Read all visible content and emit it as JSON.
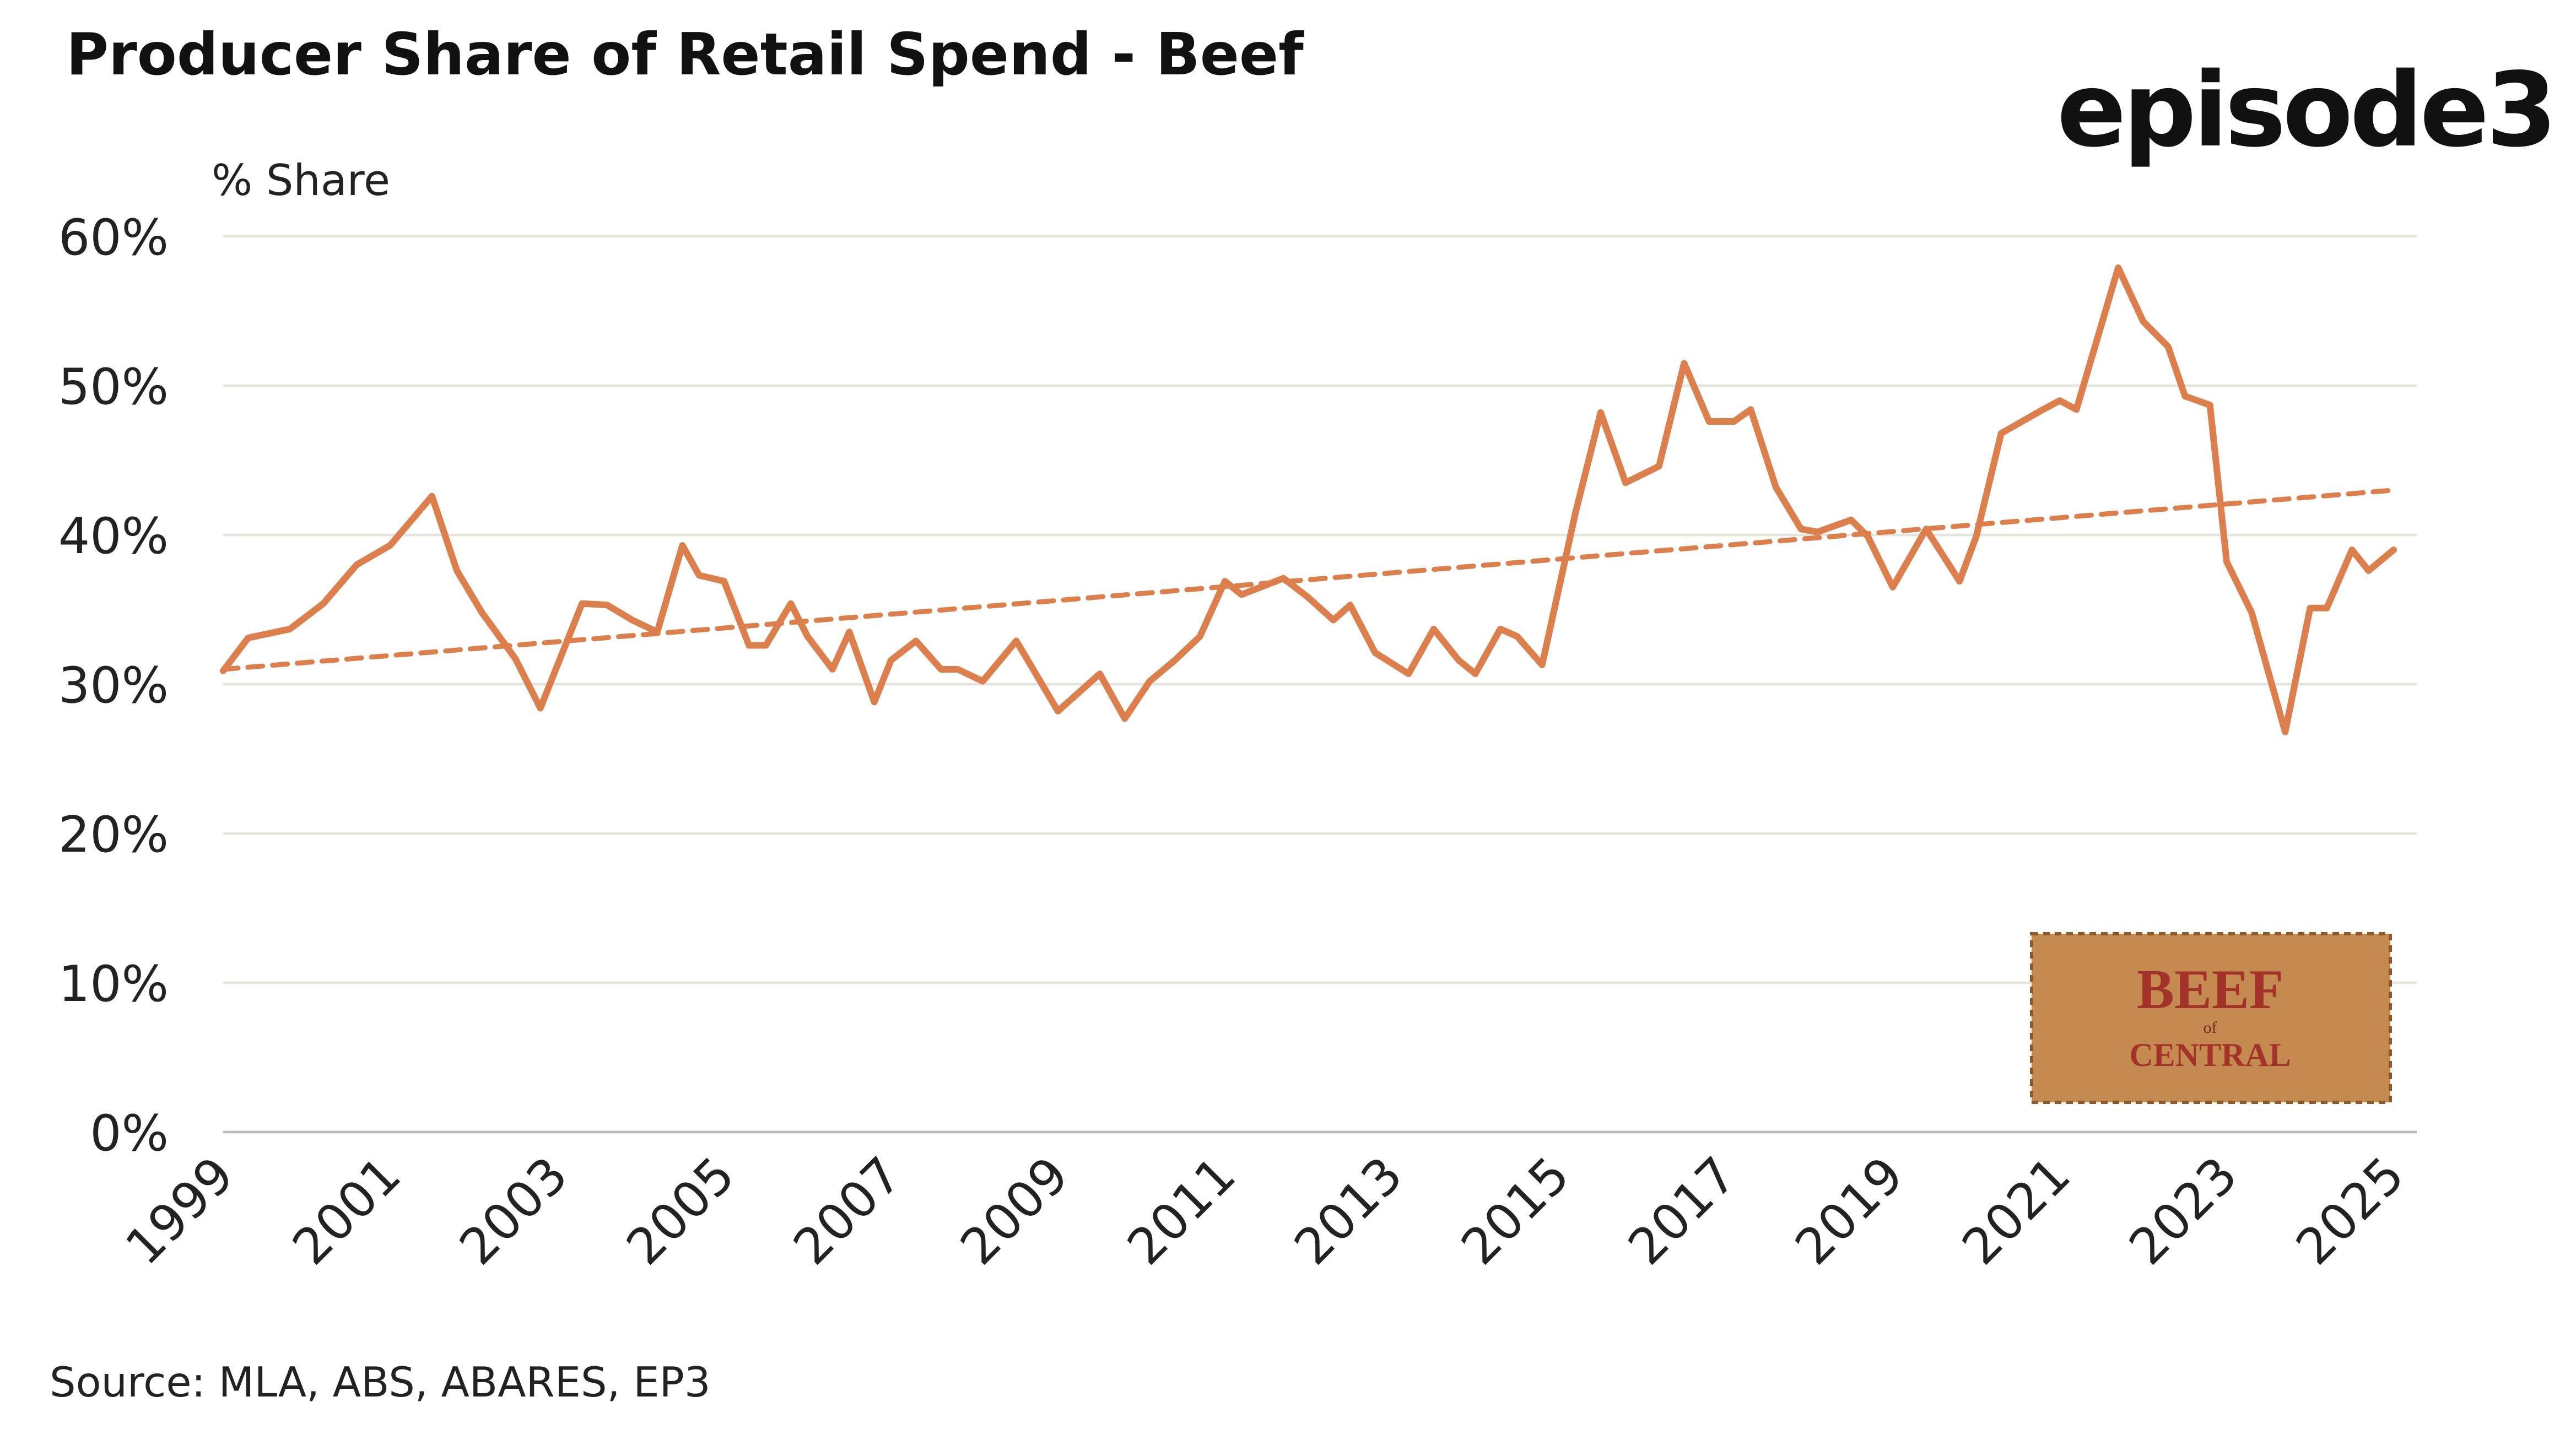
{
  "chart_data": {
    "type": "line",
    "title": "Producer Share of Retail Spend - Beef",
    "logo": "episode3",
    "ylabel": "% Share",
    "source": "Source: MLA, ABS, ABARES, EP3",
    "badge": [
      "BEEF",
      "of",
      "CENTRAL"
    ],
    "xlim": [
      1999,
      2025
    ],
    "xticks": [
      1999,
      2001,
      2003,
      2005,
      2007,
      2009,
      2011,
      2013,
      2015,
      2017,
      2019,
      2021,
      2023,
      2025
    ],
    "ylim": [
      0,
      60
    ],
    "yticks": [
      {
        "value": 0,
        "label": "0%"
      },
      {
        "value": 10,
        "label": "10%"
      },
      {
        "value": 20,
        "label": "20%"
      },
      {
        "value": 30,
        "label": "30%"
      },
      {
        "value": 40,
        "label": "40%"
      },
      {
        "value": 50,
        "label": "50%"
      },
      {
        "value": 60,
        "label": "60%"
      }
    ],
    "grid": true,
    "series": [
      {
        "color": "#dc7f4c",
        "dashed": false,
        "x": [
          1999,
          1999.3,
          1999.8,
          2000.2,
          2000.6,
          2001.0,
          2001.5,
          2001.8,
          2002.1,
          2002.5,
          2002.8,
          2003.1,
          2003.3,
          2003.6,
          2003.9,
          2004.2,
          2004.5,
          2004.7,
          2005.0,
          2005.3,
          2005.5,
          2005.8,
          2006.0,
          2006.3,
          2006.5,
          2006.8,
          2007.0,
          2007.3,
          2007.6,
          2007.8,
          2008.1,
          2008.5,
          2009.0,
          2009.5,
          2009.8,
          2010.1,
          2010.4,
          2010.7,
          2011.0,
          2011.2,
          2011.7,
          2012.0,
          2012.3,
          2012.5,
          2012.8,
          2013.2,
          2013.5,
          2013.8,
          2014.0,
          2014.3,
          2014.5,
          2014.8,
          2015.2,
          2015.5,
          2015.8,
          2016.2,
          2016.5,
          2016.8,
          2017.1,
          2017.3,
          2017.6,
          2017.9,
          2018.1,
          2018.5,
          2018.7,
          2019.0,
          2019.4,
          2019.8,
          2020.0,
          2020.3,
          2020.8,
          2021.0,
          2021.2,
          2021.7,
          2022.0,
          2022.3,
          2022.5,
          2022.8,
          2023.0,
          2023.3,
          2023.7,
          2024.0,
          2024.2,
          2024.5,
          2024.7,
          2025.0
        ],
        "values": [
          30.9,
          33.1,
          33.7,
          35.4,
          38,
          39.3,
          42.6,
          37.6,
          34.8,
          31.7,
          28.4,
          32.6,
          35.4,
          35.3,
          34.3,
          33.5,
          39.3,
          37.3,
          36.9,
          32.6,
          32.6,
          35.4,
          33.2,
          31.0,
          33.5,
          28.8,
          31.6,
          32.9,
          31.0,
          31.0,
          30.2,
          32.9,
          28.2,
          30.7,
          27.7,
          30.2,
          31.6,
          33.2,
          36.9,
          36.0,
          37.1,
          35.8,
          34.3,
          35.3,
          32.1,
          30.7,
          33.7,
          31.6,
          30.7,
          33.7,
          33.2,
          31.3,
          41.5,
          48.2,
          43.5,
          44.6,
          51.5,
          47.6,
          47.6,
          48.4,
          43.2,
          40.4,
          40.2,
          41,
          39.9,
          36.5,
          40.4,
          36.9,
          39.9,
          46.8,
          48.4,
          49,
          48.4,
          57.9,
          54.3,
          52.6,
          49.3,
          48.7,
          38.2,
          34.8,
          26.8,
          35.1,
          35.1,
          39,
          37.6,
          39
        ]
      },
      {
        "color": "#dc7f4c",
        "dashed": true,
        "x": [
          1999,
          2025
        ],
        "values": [
          31.0,
          43.0
        ]
      }
    ]
  }
}
